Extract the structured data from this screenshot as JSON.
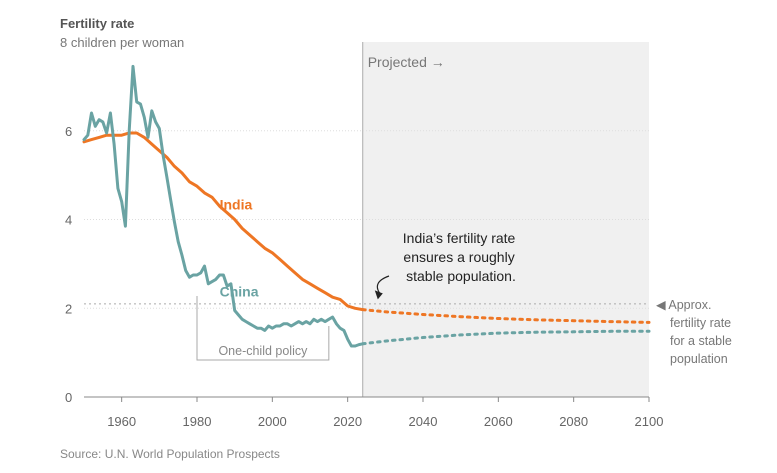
{
  "chart_data": {
    "type": "line",
    "title": "Fertility rate",
    "ylabel": "8 children per woman",
    "xlim": [
      1950,
      2100
    ],
    "ylim": [
      0,
      8
    ],
    "y_ticks": [
      {
        "value": 0,
        "label": "0"
      },
      {
        "value": 2,
        "label": "2"
      },
      {
        "value": 4,
        "label": "4"
      },
      {
        "value": 6,
        "label": "6"
      }
    ],
    "x_ticks": [
      {
        "value": 1960,
        "label": "1960"
      },
      {
        "value": 1980,
        "label": "1980"
      },
      {
        "value": 2000,
        "label": "2000"
      },
      {
        "value": 2020,
        "label": "2020"
      },
      {
        "value": 2040,
        "label": "2040"
      },
      {
        "value": 2060,
        "label": "2060"
      },
      {
        "value": 2080,
        "label": "2080"
      },
      {
        "value": 2100,
        "label": "2100"
      }
    ],
    "projection_start": 2024,
    "projected_label": "Projected →",
    "stable_rate": 2.1,
    "stable_label": [
      "◀ Approx.",
      "fertility rate",
      "for a stable",
      "population"
    ],
    "policy": {
      "start": 1980,
      "end": 2015,
      "label": "One-child policy"
    },
    "annotation": [
      "India’s fertility rate",
      "ensures a roughly",
      "stable population."
    ],
    "source": "Source: U.N. World Population Prospects",
    "colors": {
      "india": "#ee7624",
      "china": "#6aa3a3",
      "projection_bg": "#f0f0f0",
      "text": "#666666"
    },
    "series": [
      {
        "name": "India",
        "label": "India",
        "color": "#ee7624",
        "x": [
          1950,
          1952,
          1954,
          1956,
          1958,
          1960,
          1962,
          1964,
          1966,
          1968,
          1970,
          1972,
          1974,
          1976,
          1978,
          1980,
          1982,
          1984,
          1986,
          1988,
          1990,
          1992,
          1994,
          1996,
          1998,
          2000,
          2002,
          2004,
          2006,
          2008,
          2010,
          2012,
          2014,
          2016,
          2018,
          2020,
          2022,
          2024
        ],
        "values": [
          5.75,
          5.8,
          5.85,
          5.9,
          5.9,
          5.9,
          5.95,
          5.95,
          5.85,
          5.7,
          5.55,
          5.4,
          5.2,
          5.05,
          4.85,
          4.75,
          4.6,
          4.5,
          4.3,
          4.15,
          4.0,
          3.8,
          3.65,
          3.5,
          3.35,
          3.25,
          3.1,
          2.95,
          2.8,
          2.65,
          2.55,
          2.45,
          2.35,
          2.25,
          2.2,
          2.05,
          2.0,
          1.97
        ]
      },
      {
        "name": "China",
        "label": "China",
        "color": "#6aa3a3",
        "x": [
          1950,
          1951,
          1952,
          1953,
          1954,
          1955,
          1956,
          1957,
          1958,
          1959,
          1960,
          1961,
          1962,
          1963,
          1964,
          1965,
          1966,
          1967,
          1968,
          1969,
          1970,
          1971,
          1972,
          1973,
          1974,
          1975,
          1976,
          1977,
          1978,
          1979,
          1980,
          1981,
          1982,
          1983,
          1984,
          1985,
          1986,
          1987,
          1988,
          1989,
          1990,
          1991,
          1992,
          1993,
          1994,
          1995,
          1996,
          1997,
          1998,
          1999,
          2000,
          2001,
          2002,
          2003,
          2004,
          2005,
          2006,
          2007,
          2008,
          2009,
          2010,
          2011,
          2012,
          2013,
          2014,
          2015,
          2016,
          2017,
          2018,
          2019,
          2020,
          2021,
          2022,
          2023,
          2024
        ],
        "values": [
          5.8,
          5.9,
          6.4,
          6.1,
          6.25,
          6.2,
          5.95,
          6.4,
          5.7,
          4.7,
          4.4,
          3.85,
          6.0,
          7.45,
          6.65,
          6.6,
          6.3,
          5.85,
          6.45,
          6.2,
          6.05,
          5.45,
          4.95,
          4.45,
          3.95,
          3.5,
          3.2,
          2.85,
          2.7,
          2.75,
          2.75,
          2.8,
          2.95,
          2.55,
          2.6,
          2.65,
          2.75,
          2.75,
          2.5,
          2.55,
          1.95,
          1.85,
          1.75,
          1.7,
          1.65,
          1.6,
          1.55,
          1.55,
          1.5,
          1.6,
          1.55,
          1.6,
          1.6,
          1.65,
          1.65,
          1.6,
          1.65,
          1.7,
          1.65,
          1.7,
          1.65,
          1.75,
          1.7,
          1.75,
          1.7,
          1.75,
          1.8,
          1.65,
          1.55,
          1.5,
          1.3,
          1.15,
          1.15,
          1.18,
          1.2
        ]
      },
      {
        "name": "India (projected)",
        "color": "#ee7624",
        "dashed": true,
        "x": [
          2024,
          2030,
          2040,
          2050,
          2060,
          2070,
          2080,
          2090,
          2100
        ],
        "values": [
          1.97,
          1.92,
          1.86,
          1.81,
          1.77,
          1.74,
          1.72,
          1.7,
          1.68
        ]
      },
      {
        "name": "China (projected)",
        "color": "#6aa3a3",
        "dashed": true,
        "x": [
          2024,
          2030,
          2040,
          2050,
          2060,
          2070,
          2080,
          2090,
          2100
        ],
        "values": [
          1.2,
          1.26,
          1.34,
          1.4,
          1.44,
          1.46,
          1.47,
          1.48,
          1.48
        ]
      }
    ]
  }
}
